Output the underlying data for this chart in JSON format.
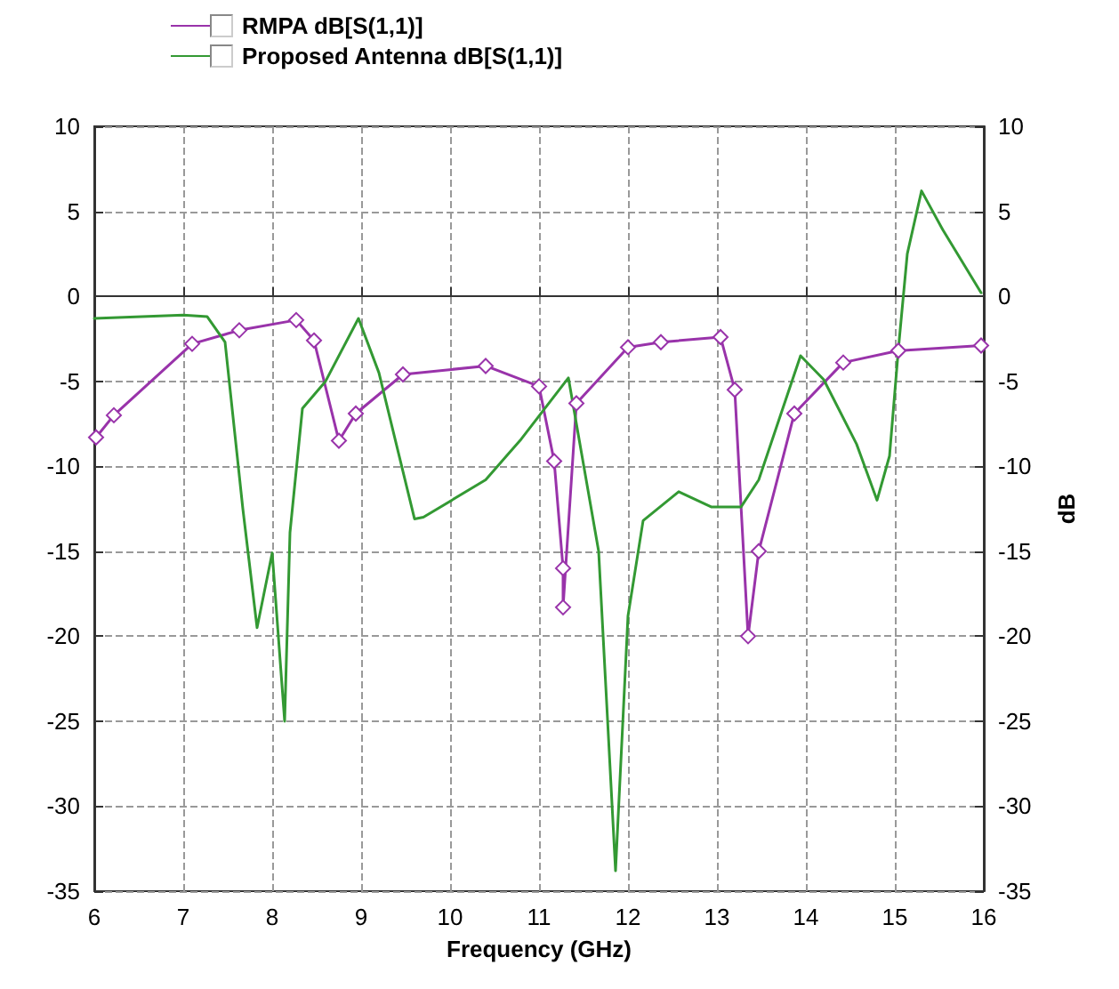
{
  "chart_data": {
    "type": "line",
    "xlabel": "Frequency (GHz)",
    "y2label": "dB",
    "xlim": [
      6,
      16
    ],
    "xticks": [
      6,
      7,
      8,
      9,
      10,
      11,
      12,
      13,
      14,
      15,
      16
    ],
    "ylim": [
      -35,
      10
    ],
    "yticks": [
      -35,
      -30,
      -25,
      -20,
      -15,
      -10,
      -5,
      0,
      5,
      10
    ],
    "y2lim": [
      -35,
      10
    ],
    "y2ticks": [
      -35,
      -30,
      -25,
      -20,
      -15,
      -10,
      -5,
      0,
      5,
      10
    ],
    "grid": true,
    "legend": "top left",
    "line_style": "solid",
    "series": [
      {
        "name": "RMPA dB[S(1,1)]",
        "color": "#9933aa",
        "marker": "diamond",
        "x": [
          6.02,
          6.22,
          7.1,
          7.63,
          8.27,
          8.47,
          8.75,
          8.94,
          9.47,
          10.4,
          11.0,
          11.17,
          11.27,
          11.27,
          11.42,
          12.0,
          12.37,
          13.04,
          13.2,
          13.35,
          13.47,
          13.87,
          14.42,
          15.04,
          15.97
        ],
        "values": [
          -8.3,
          -7.0,
          -2.8,
          -2.0,
          -1.4,
          -2.6,
          -8.5,
          -6.9,
          -4.6,
          -4.1,
          -5.3,
          -9.7,
          -16.0,
          -18.3,
          -6.3,
          -3.0,
          -2.7,
          -2.4,
          -5.5,
          -20.0,
          -15.0,
          -6.9,
          -3.9,
          -3.2,
          -2.9
        ]
      },
      {
        "name": "Proposed Antenna dB[S(1,1)]",
        "color": "#339933",
        "marker": "none",
        "x": [
          6.0,
          7.0,
          7.27,
          7.47,
          7.67,
          7.83,
          8.0,
          8.14,
          8.2,
          8.34,
          8.6,
          8.97,
          9.2,
          9.6,
          9.7,
          10.4,
          10.8,
          11.33,
          11.67,
          11.86,
          12.0,
          12.17,
          12.57,
          12.94,
          13.27,
          13.47,
          13.74,
          13.94,
          14.2,
          14.57,
          14.8,
          14.94,
          15.04,
          15.14,
          15.3,
          15.54,
          15.97
        ],
        "values": [
          -1.3,
          -1.1,
          -1.2,
          -2.7,
          -12.5,
          -19.5,
          -15.1,
          -25.0,
          -13.9,
          -6.6,
          -5.0,
          -1.3,
          -4.5,
          -13.1,
          -13.0,
          -10.8,
          -8.4,
          -4.8,
          -15.0,
          -33.8,
          -18.8,
          -13.2,
          -11.5,
          -12.4,
          -12.4,
          -10.8,
          -6.6,
          -3.5,
          -4.9,
          -8.7,
          -12.0,
          -9.4,
          -3.1,
          2.5,
          6.2,
          3.9,
          0.2
        ]
      }
    ]
  }
}
